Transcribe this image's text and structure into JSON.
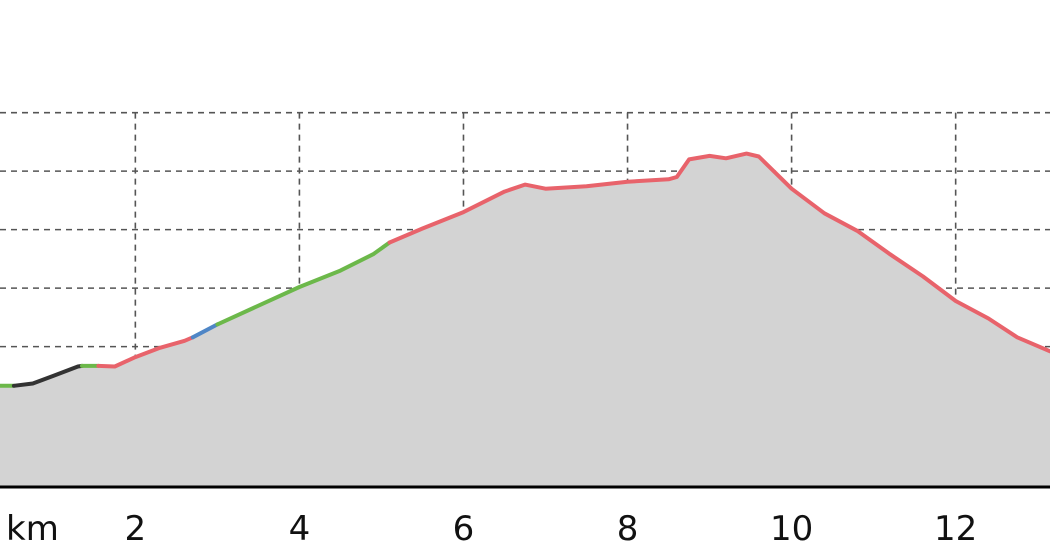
{
  "chart_data": {
    "type": "area",
    "x_unit_label": "km",
    "x_ticks": [
      2,
      4,
      6,
      8,
      10,
      12
    ],
    "xlim": [
      0.35,
      13.15
    ],
    "ylim": [
      0,
      7.3
    ],
    "y_grid": [
      0.4,
      1.4,
      2.4,
      3.4,
      4.4,
      5.4,
      6.4
    ],
    "x_grid": [
      2,
      4,
      6,
      8,
      10,
      12
    ],
    "grid": true,
    "colors": {
      "black": "#333333",
      "green": "#6cb84a",
      "blue": "#4f86c6",
      "red": "#e8636b",
      "fill": "#d3d3d3"
    },
    "series": [
      {
        "color_key": "green",
        "points": [
          [
            0.35,
            1.73
          ],
          [
            0.52,
            1.73
          ]
        ]
      },
      {
        "color_key": "black",
        "points": [
          [
            0.52,
            1.73
          ],
          [
            0.75,
            1.77
          ],
          [
            1.0,
            1.9
          ],
          [
            1.3,
            2.06
          ],
          [
            1.35,
            2.07
          ]
        ]
      },
      {
        "color_key": "green",
        "points": [
          [
            1.35,
            2.07
          ],
          [
            1.55,
            2.07
          ]
        ]
      },
      {
        "color_key": "red",
        "points": [
          [
            1.55,
            2.07
          ],
          [
            1.75,
            2.06
          ],
          [
            2.0,
            2.22
          ],
          [
            2.3,
            2.38
          ],
          [
            2.6,
            2.5
          ],
          [
            2.7,
            2.56
          ]
        ]
      },
      {
        "color_key": "blue",
        "points": [
          [
            2.7,
            2.56
          ],
          [
            3.0,
            2.78
          ]
        ]
      },
      {
        "color_key": "green",
        "points": [
          [
            3.0,
            2.78
          ],
          [
            3.5,
            3.1
          ],
          [
            4.0,
            3.42
          ],
          [
            4.5,
            3.7
          ],
          [
            4.9,
            3.98
          ],
          [
            5.1,
            4.18
          ]
        ]
      },
      {
        "color_key": "red",
        "points": [
          [
            5.1,
            4.18
          ],
          [
            5.5,
            4.42
          ],
          [
            6.0,
            4.7
          ],
          [
            6.5,
            5.05
          ],
          [
            6.75,
            5.17
          ],
          [
            7.0,
            5.1
          ],
          [
            7.5,
            5.14
          ],
          [
            8.0,
            5.22
          ],
          [
            8.5,
            5.26
          ],
          [
            8.6,
            5.3
          ],
          [
            8.75,
            5.6
          ],
          [
            9.0,
            5.66
          ],
          [
            9.2,
            5.62
          ],
          [
            9.45,
            5.7
          ],
          [
            9.6,
            5.65
          ],
          [
            10.0,
            5.1
          ],
          [
            10.4,
            4.68
          ],
          [
            10.8,
            4.38
          ],
          [
            11.2,
            3.98
          ],
          [
            11.6,
            3.6
          ],
          [
            12.0,
            3.18
          ],
          [
            12.4,
            2.88
          ],
          [
            12.75,
            2.56
          ],
          [
            13.15,
            2.32
          ]
        ]
      }
    ]
  }
}
